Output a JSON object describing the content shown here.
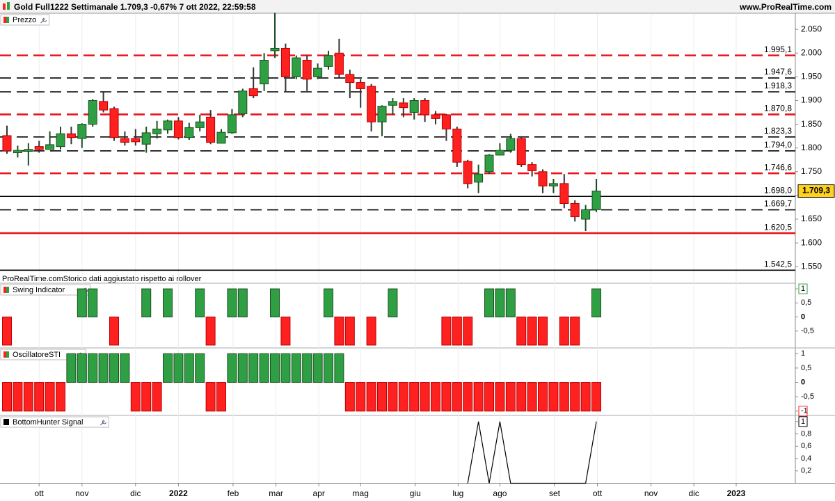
{
  "header": {
    "title": "Gold Full1222 Settimanale 1.709,3 -0,67% 7 ott 2022, 22:59:58",
    "site": "www.ProRealTime.com",
    "watermark": "ProRealTime.comStorico dati aggiustato rispetto ai rollover"
  },
  "xlim": [
    -0.65,
    73.57
  ],
  "xticks": [
    {
      "value": 3,
      "label": "ott"
    },
    {
      "value": 7,
      "label": "nov"
    },
    {
      "value": 12,
      "label": "dic"
    },
    {
      "value": 16,
      "label": "2022"
    },
    {
      "value": 21.1,
      "label": "feb"
    },
    {
      "value": 25.1,
      "label": "mar"
    },
    {
      "value": 29.1,
      "label": "apr"
    },
    {
      "value": 33,
      "label": "mag"
    },
    {
      "value": 38.1,
      "label": "giu"
    },
    {
      "value": 42.1,
      "label": "lug"
    },
    {
      "value": 46,
      "label": "ago"
    },
    {
      "value": 51.1,
      "label": "set"
    },
    {
      "value": 55.1,
      "label": "ott"
    },
    {
      "value": 60.1,
      "label": "nov"
    },
    {
      "value": 64.1,
      "label": "dic"
    },
    {
      "value": 68.05,
      "label": "2023"
    }
  ],
  "chart_data": [
    {
      "type": "candlestick",
      "name": "Prezzo",
      "up_color": "#2ea043",
      "down_color": "#ff2020",
      "open": [
        1826,
        1790,
        1793,
        1803,
        1797,
        1803,
        1830,
        1820,
        1850,
        1898,
        1883,
        1820,
        1820,
        1808,
        1830,
        1838,
        1857,
        1822,
        1843,
        1865,
        1810,
        1832,
        1872,
        1925,
        1935,
        2005,
        2010,
        1950,
        1985,
        1950,
        1972,
        2000,
        1955,
        1938,
        1930,
        1855,
        1890,
        1895,
        1875,
        1900,
        1870,
        1870,
        1840,
        1772,
        1728,
        1750,
        1785,
        1795,
        1820,
        1765,
        1750,
        1720,
        1725,
        1683,
        1650,
        1670
      ],
      "high": [
        1847,
        1805,
        1810,
        1815,
        1835,
        1845,
        1845,
        1852,
        1903,
        1918,
        1887,
        1835,
        1840,
        1845,
        1857,
        1860,
        1865,
        1853,
        1870,
        1880,
        1840,
        1882,
        1925,
        1970,
        2000,
        2085,
        2020,
        1995,
        1995,
        1978,
        2005,
        2030,
        1965,
        1945,
        1935,
        1890,
        1905,
        1905,
        1905,
        1905,
        1878,
        1872,
        1845,
        1775,
        1765,
        1787,
        1810,
        1830,
        1825,
        1770,
        1755,
        1735,
        1745,
        1690,
        1680,
        1735
      ],
      "low": [
        1788,
        1780,
        1763,
        1790,
        1797,
        1797,
        1808,
        1800,
        1845,
        1875,
        1815,
        1805,
        1805,
        1790,
        1820,
        1830,
        1818,
        1817,
        1835,
        1808,
        1810,
        1830,
        1865,
        1905,
        1920,
        1990,
        1918,
        1945,
        1920,
        1945,
        1965,
        1948,
        1905,
        1885,
        1835,
        1825,
        1870,
        1865,
        1860,
        1855,
        1850,
        1815,
        1760,
        1715,
        1705,
        1745,
        1785,
        1790,
        1760,
        1740,
        1705,
        1705,
        1673,
        1645,
        1625,
        1665
      ],
      "close": [
        1794,
        1795,
        1797,
        1797,
        1807,
        1830,
        1822,
        1850,
        1900,
        1880,
        1822,
        1812,
        1813,
        1832,
        1840,
        1857,
        1822,
        1843,
        1855,
        1812,
        1833,
        1870,
        1920,
        1910,
        1985,
        2010,
        1950,
        1990,
        1945,
        1968,
        1995,
        1955,
        1938,
        1925,
        1855,
        1888,
        1898,
        1885,
        1900,
        1870,
        1862,
        1840,
        1770,
        1725,
        1745,
        1785,
        1795,
        1820,
        1765,
        1752,
        1720,
        1725,
        1683,
        1655,
        1670,
        1709.3
      ],
      "ylim": [
        1540,
        2084
      ],
      "yticks": [
        {
          "value": 1550,
          "label": "1.550"
        },
        {
          "value": 1600,
          "label": "1.600"
        },
        {
          "value": 1650,
          "label": "1.650"
        },
        {
          "value": 1700,
          "label": "1.700"
        },
        {
          "value": 1750,
          "label": "1.750"
        },
        {
          "value": 1800,
          "label": "1.800"
        },
        {
          "value": 1850,
          "label": "1.850"
        },
        {
          "value": 1900,
          "label": "1.900"
        },
        {
          "value": 1950,
          "label": "1.950"
        },
        {
          "value": 2000,
          "label": "2.000"
        },
        {
          "value": 2050,
          "label": "2.050"
        }
      ],
      "levels": [
        {
          "value": 1995.1,
          "label": "1.995,1",
          "color": "#e8141c",
          "style": "dashed"
        },
        {
          "value": 1947.6,
          "label": "1.947,6",
          "color": "#000000",
          "style": "dashed"
        },
        {
          "value": 1918.3,
          "label": "1.918,3",
          "color": "#000000",
          "style": "dashed"
        },
        {
          "value": 1870.8,
          "label": "1.870,8",
          "color": "#e8141c",
          "style": "dashed"
        },
        {
          "value": 1823.3,
          "label": "1.823,3",
          "color": "#000000",
          "style": "dashed"
        },
        {
          "value": 1794.0,
          "label": "1.794,0",
          "color": "#000000",
          "style": "dashed"
        },
        {
          "value": 1746.6,
          "label": "1.746,6",
          "color": "#e8141c",
          "style": "dashed"
        },
        {
          "value": 1698.0,
          "label": "1.698,0",
          "color": "#000000",
          "style": "solid"
        },
        {
          "value": 1669.7,
          "label": "1.669,7",
          "color": "#000000",
          "style": "dashed"
        },
        {
          "value": 1620.5,
          "label": "1.620,5",
          "color": "#e8141c",
          "style": "solid"
        },
        {
          "value": 1542.5,
          "label": "1.542,5",
          "color": "#000000",
          "style": "solid"
        }
      ],
      "last_price": {
        "value": 1709.3,
        "label": "1.709,3"
      }
    },
    {
      "type": "bar",
      "name": "Swing Indicator",
      "up_color": "#2ea043",
      "down_color": "#ff2020",
      "values": [
        -1,
        0,
        0,
        0,
        0,
        0,
        0,
        1,
        1,
        0,
        -1,
        0,
        0,
        1,
        0,
        1,
        0,
        0,
        1,
        -1,
        0,
        1,
        1,
        0,
        0,
        1,
        -1,
        0,
        0,
        0,
        1,
        -1,
        -1,
        0,
        -1,
        0,
        1,
        0,
        0,
        0,
        0,
        -1,
        -1,
        -1,
        0,
        1,
        1,
        1,
        -1,
        -1,
        -1,
        0,
        -1,
        -1,
        0,
        1
      ],
      "ylim": [
        -1.1,
        1.2
      ],
      "yticks": [
        1,
        {
          "value": 0.5,
          "label": "0,5"
        },
        0,
        {
          "value": -0.5,
          "label": "-0,5"
        }
      ]
    },
    {
      "type": "bar",
      "name": "OscillatoreSTI",
      "up_color": "#2ea043",
      "down_color": "#ff2020",
      "values": [
        -1,
        -1,
        -1,
        -1,
        -1,
        -1,
        1,
        1,
        1,
        1,
        1,
        1,
        -1,
        -1,
        -1,
        1,
        1,
        1,
        1,
        -1,
        -1,
        1,
        1,
        1,
        1,
        1,
        1,
        1,
        1,
        1,
        1,
        1,
        -1,
        -1,
        -1,
        -1,
        -1,
        -1,
        -1,
        -1,
        -1,
        -1,
        -1,
        -1,
        -1,
        -1,
        -1,
        -1,
        -1,
        -1,
        -1,
        -1,
        -1,
        -1,
        -1,
        -1
      ],
      "ylim": [
        -1.15,
        1.2
      ],
      "yticks": [
        1,
        {
          "value": 0.5,
          "label": "0,5"
        },
        0,
        {
          "value": -0.5,
          "label": "-0,5"
        },
        -1
      ]
    },
    {
      "type": "line",
      "name": "BottomHunter Signal",
      "color": "#000000",
      "values": [
        null,
        null,
        null,
        null,
        null,
        null,
        null,
        null,
        null,
        null,
        null,
        null,
        null,
        null,
        null,
        null,
        null,
        null,
        null,
        null,
        null,
        null,
        null,
        null,
        null,
        null,
        null,
        null,
        null,
        null,
        null,
        null,
        null,
        null,
        null,
        null,
        null,
        null,
        null,
        null,
        null,
        null,
        null,
        0,
        1,
        0,
        1,
        0,
        0,
        0,
        0,
        0,
        0,
        0,
        0,
        1
      ],
      "ylim": [
        0,
        1.1
      ],
      "yticks": [
        1,
        {
          "value": 0.8,
          "label": "0,8"
        },
        {
          "value": 0.6,
          "label": "0,6"
        },
        {
          "value": 0.4,
          "label": "0,4"
        },
        {
          "value": 0.2,
          "label": "0,2"
        }
      ]
    }
  ]
}
